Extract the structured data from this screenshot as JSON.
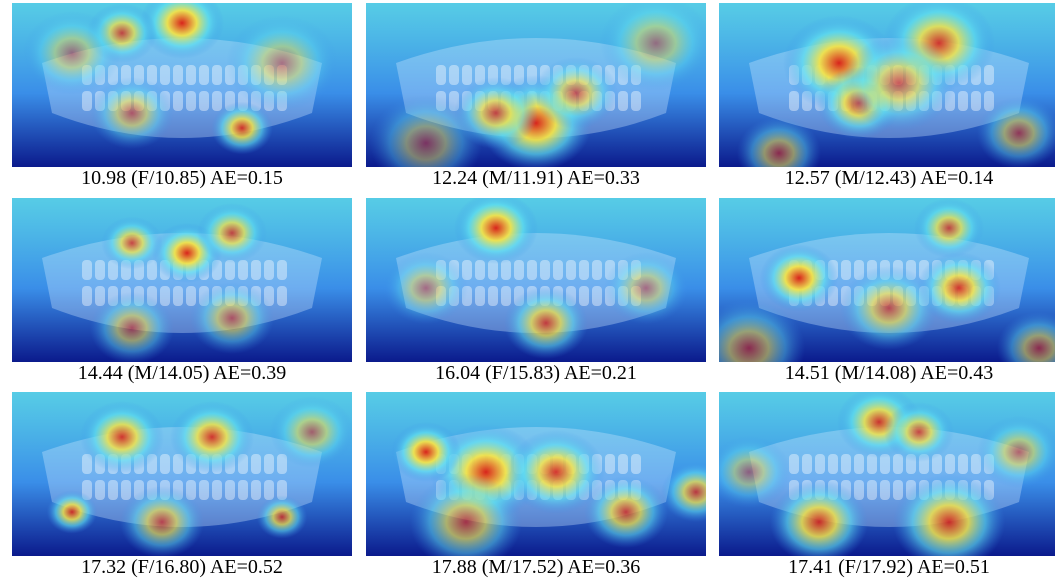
{
  "panels": [
    {
      "caption": "10.98 (F/10.85) AE=0.15",
      "image": "dental-panoramic-xray-heatmap"
    },
    {
      "caption": "12.24 (M/11.91) AE=0.33",
      "image": "dental-panoramic-xray-heatmap"
    },
    {
      "caption": "12.57 (M/12.43) AE=0.14",
      "image": "dental-panoramic-xray-heatmap"
    },
    {
      "caption": "14.44 (M/14.05) AE=0.39",
      "image": "dental-panoramic-xray-heatmap"
    },
    {
      "caption": "16.04 (F/15.83) AE=0.21",
      "image": "dental-panoramic-xray-heatmap"
    },
    {
      "caption": "14.51 (M/14.08) AE=0.43",
      "image": "dental-panoramic-xray-heatmap"
    },
    {
      "caption": "17.32 (F/16.80) AE=0.52",
      "image": "dental-panoramic-xray-heatmap"
    },
    {
      "caption": "17.88 (M/17.52) AE=0.36",
      "image": "dental-panoramic-xray-heatmap"
    },
    {
      "caption": "17.41 (F/17.92) AE=0.51",
      "image": "dental-panoramic-xray-heatmap"
    }
  ],
  "colors": {
    "cold": "#0b1a8c",
    "cool": "#3a8ee8",
    "cyan": "#5fe0f0",
    "warm": "#f2e34a",
    "hot": "#d8241c",
    "background": "#ffffff",
    "caption_text": "#000000"
  }
}
